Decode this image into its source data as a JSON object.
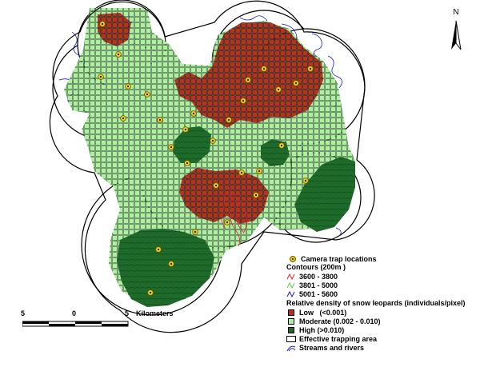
{
  "map": {
    "colors": {
      "low": "#b5341f",
      "moderate": "#aef0a0",
      "high": "#1e6a2a",
      "contour_low": "#e0202a",
      "contour_mid": "#5fd04a",
      "contour_high": "#1b1bd0",
      "camera": "#f2d300",
      "boundary": "#000000"
    }
  },
  "north_arrow": {
    "label": "N"
  },
  "scale_bar": {
    "ticks": [
      "5",
      "0",
      "5"
    ],
    "unit": "Kilometers"
  },
  "legend": {
    "camera_traps": "Camera trap locations",
    "contours_title": "Contours (200m )",
    "contour_items": [
      "3600 - 3800",
      "3801 - 5000",
      "5001 - 5600"
    ],
    "density_title": "Relative density of snow leopards (individuals/pixel)",
    "density_items": [
      "Low   (<0.001)",
      "Moderate (0.002 - 0.010)",
      "High (>0.010)"
    ],
    "trapping_area": "Effective trapping area",
    "streams": "Streams and rivers"
  }
}
